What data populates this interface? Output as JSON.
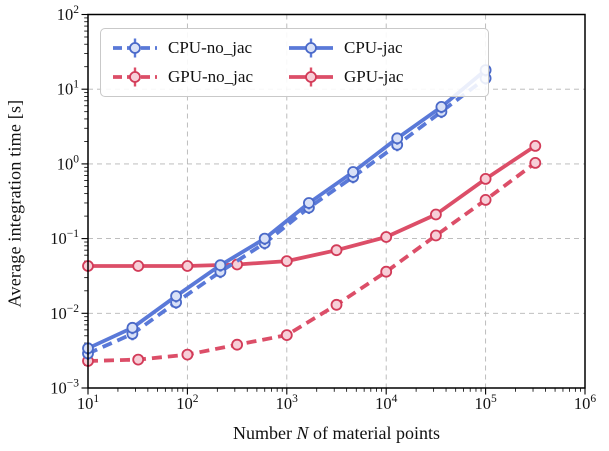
{
  "figure": {
    "xlabel_parts": {
      "pre": "Number ",
      "var": "N",
      "post": " of material points"
    }
  },
  "chart_data": {
    "type": "line",
    "title": "",
    "xlabel": "Number N of material points",
    "ylabel": "Average integration time [s]",
    "x_scale": "log",
    "y_scale": "log",
    "xlim": [
      10,
      1000000
    ],
    "ylim": [
      0.001,
      100
    ],
    "x_tick_exponents": [
      1,
      2,
      3,
      4,
      5,
      6
    ],
    "y_tick_exponents": [
      -3,
      -2,
      -1,
      0,
      1,
      2
    ],
    "grid": "dashed gridlines at major ticks, both axes",
    "legend_position": "upper left, 2 columns, order: CPU-no_jac, GPU-no_jac | CPU-jac, GPU-jac",
    "error_bars": "small symmetric vertical whiskers on every point",
    "colors": {
      "cpu_line": "#5A79D8",
      "cpu_marker_edge": "#4A69C8",
      "cpu_marker_fill": "#D9E1F7",
      "gpu_line": "#DC4E68",
      "gpu_marker_edge": "#D23B58",
      "gpu_marker_fill": "#F7CFD8",
      "grid": "#B5B5B5",
      "spine": "#000000",
      "text": "#111111"
    },
    "series": [
      {
        "name": "CPU-no_jac",
        "style": "dashed",
        "color": "#5A79D8",
        "marker_edge": "#4A69C8",
        "marker_fill": "#D9E1F7",
        "yerr_rel": 0.18,
        "x": [
          10,
          28,
          77,
          215,
          599,
          1668,
          4642,
          12915,
          35938,
          100000
        ],
        "y": [
          0.0029,
          0.0053,
          0.014,
          0.036,
          0.087,
          0.26,
          0.67,
          1.8,
          5.0,
          14
        ]
      },
      {
        "name": "GPU-no_jac",
        "style": "dashed",
        "color": "#DC4E68",
        "marker_edge": "#D23B58",
        "marker_fill": "#F7CFD8",
        "yerr_rel": 0.12,
        "x": [
          10,
          32,
          100,
          316,
          1000,
          3162,
          10000,
          31623,
          100000,
          316228
        ],
        "y": [
          0.0023,
          0.0024,
          0.0028,
          0.0038,
          0.0051,
          0.013,
          0.036,
          0.11,
          0.33,
          1.03
        ]
      },
      {
        "name": "CPU-jac",
        "style": "solid",
        "color": "#5A79D8",
        "marker_edge": "#4A69C8",
        "marker_fill": "#D9E1F7",
        "yerr_rel": 0.18,
        "x": [
          10,
          28,
          77,
          215,
          599,
          1668,
          4642,
          12915,
          35938,
          100000
        ],
        "y": [
          0.0034,
          0.0064,
          0.017,
          0.044,
          0.1,
          0.3,
          0.78,
          2.2,
          5.8,
          18
        ]
      },
      {
        "name": "GPU-jac",
        "style": "solid",
        "color": "#DC4E68",
        "marker_edge": "#D23B58",
        "marker_fill": "#F7CFD8",
        "yerr_rel": 0.1,
        "x": [
          10,
          32,
          100,
          316,
          1000,
          3162,
          10000,
          31623,
          100000,
          316228
        ],
        "y": [
          0.043,
          0.043,
          0.043,
          0.045,
          0.05,
          0.07,
          0.105,
          0.21,
          0.63,
          1.74
        ]
      }
    ]
  }
}
